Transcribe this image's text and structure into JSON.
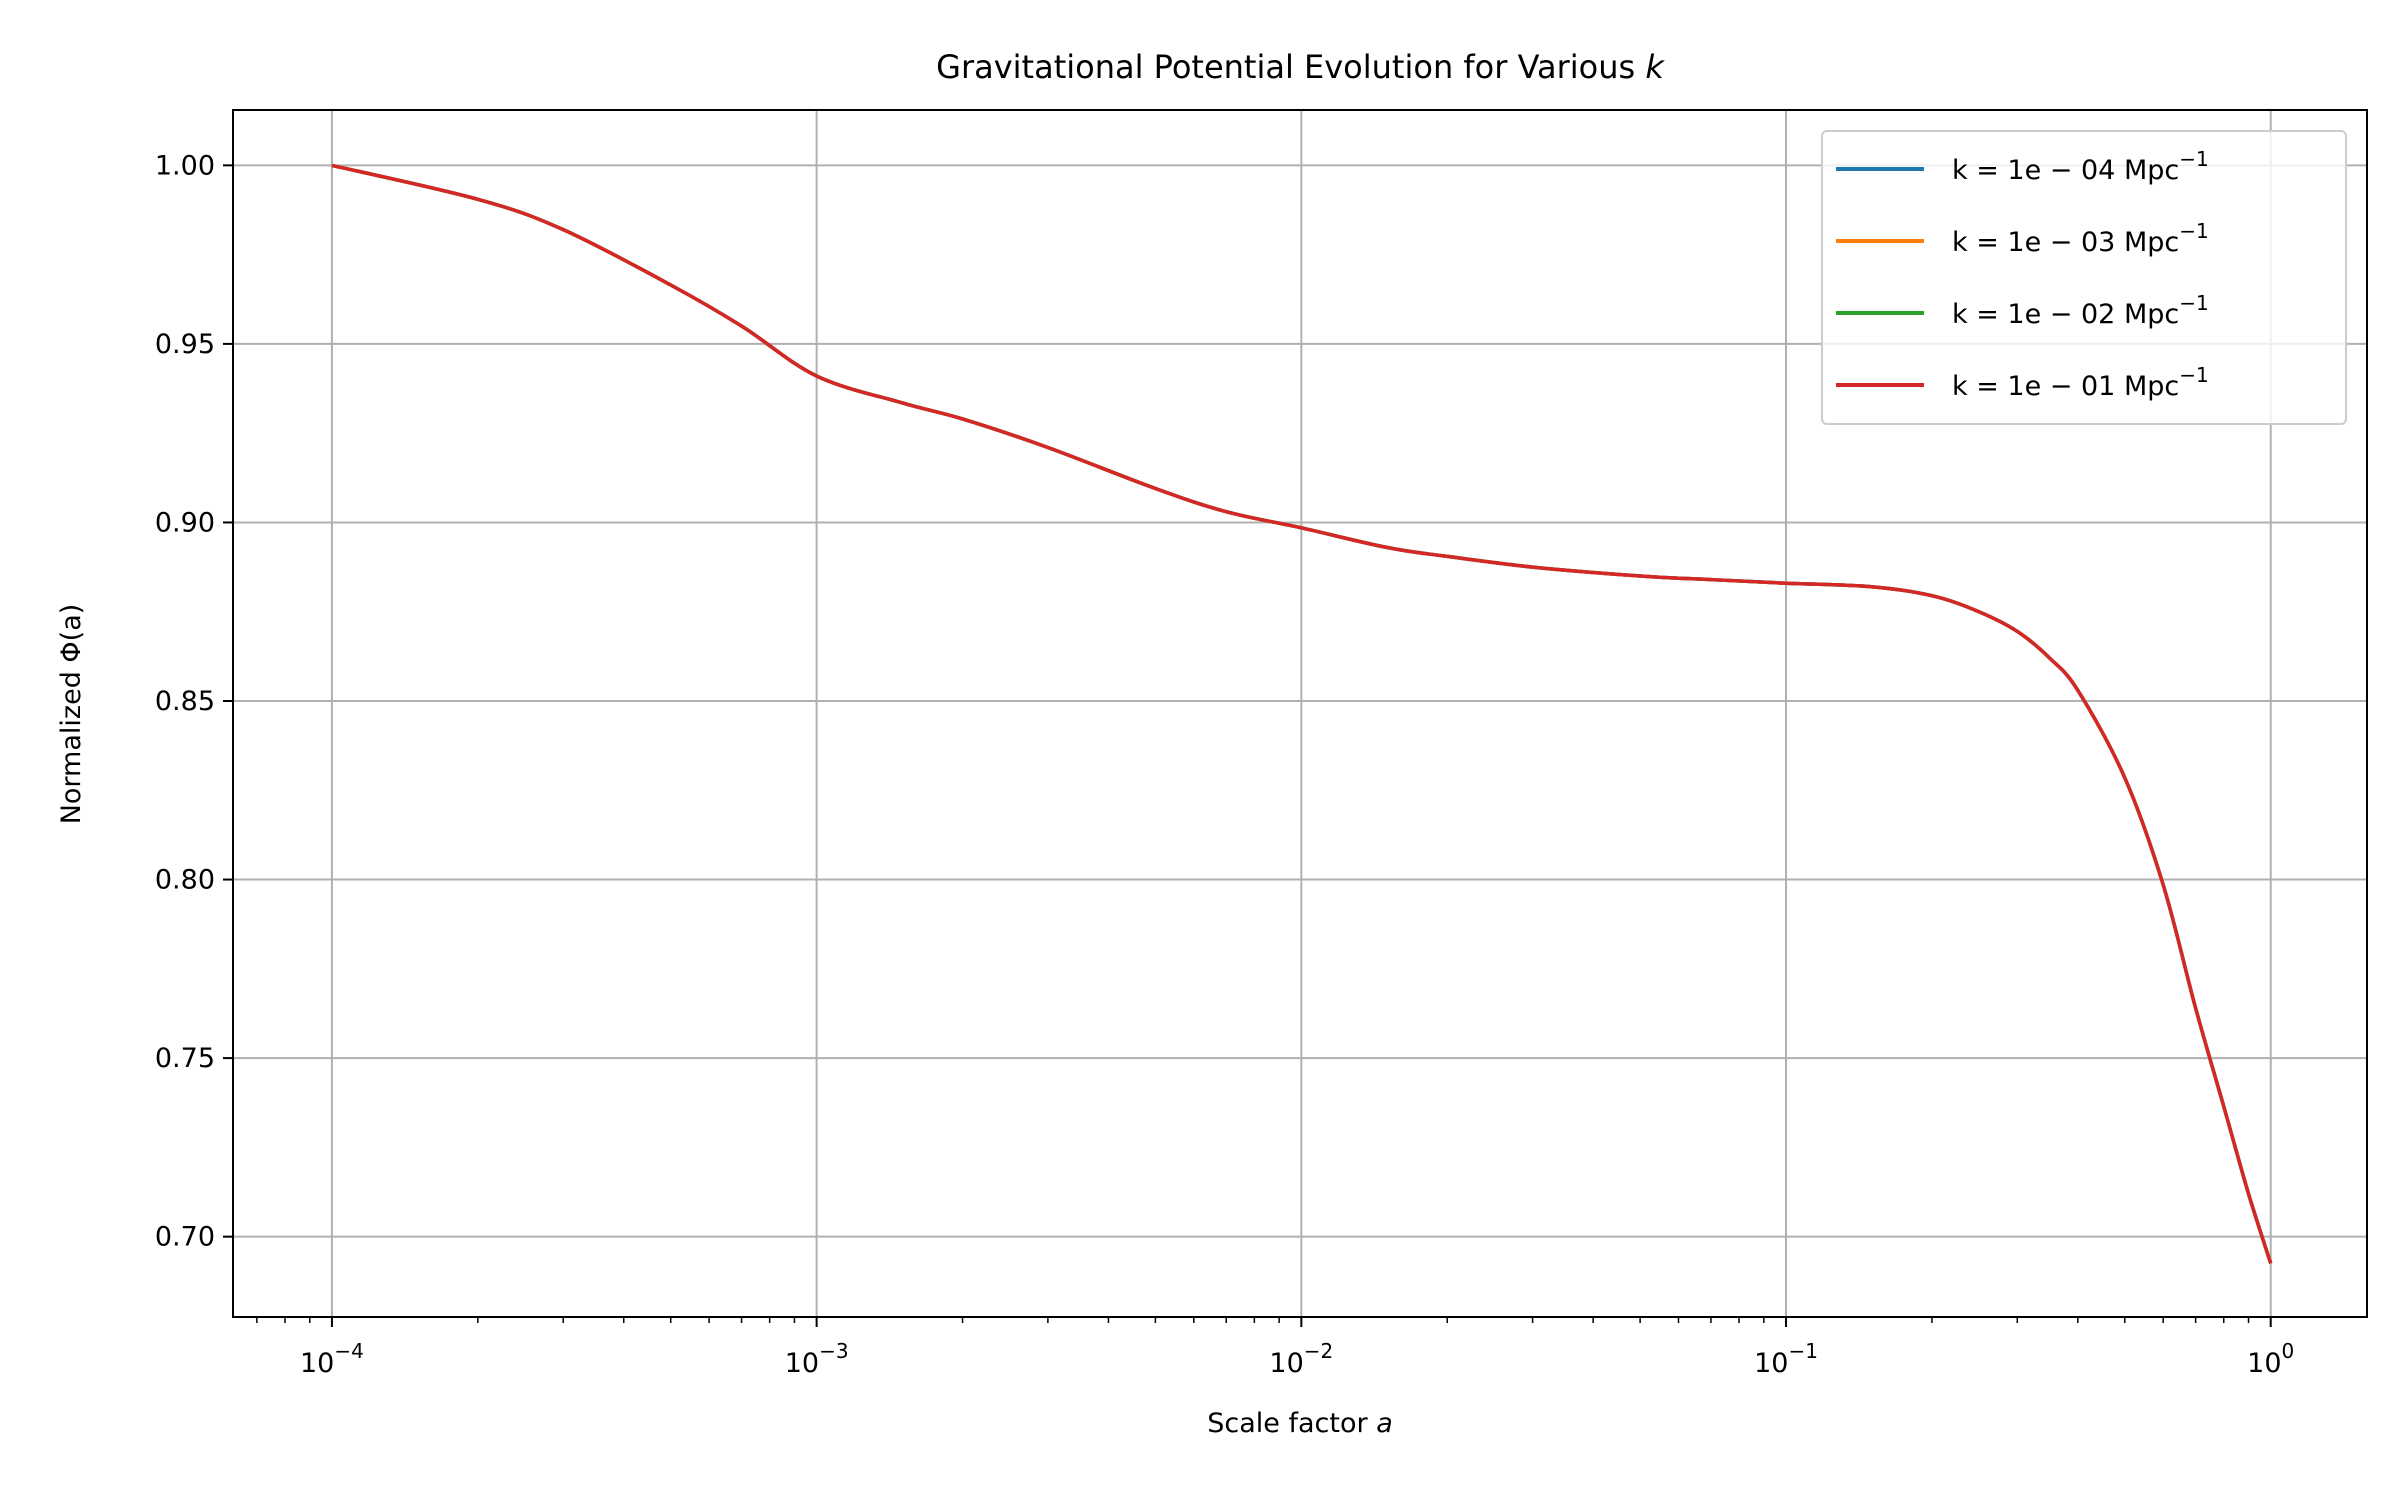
{
  "chart_data": {
    "type": "line",
    "title": "Gravitational Potential Evolution for Various ",
    "title_italic": "k",
    "xlabel": "Scale factor ",
    "xlabel_italic": "a",
    "ylabel": "Normalized Φ(a)",
    "xscale": "log",
    "xlim": [
      6.25e-05,
      1.58
    ],
    "ylim": [
      0.6775,
      1.0155
    ],
    "xticks": [
      {
        "value": 0.0001,
        "base": "10",
        "exp": "−4"
      },
      {
        "value": 0.001,
        "base": "10",
        "exp": "−3"
      },
      {
        "value": 0.01,
        "base": "10",
        "exp": "−2"
      },
      {
        "value": 0.1,
        "base": "10",
        "exp": "−1"
      },
      {
        "value": 1,
        "base": "10",
        "exp": "0"
      }
    ],
    "yticks": [
      {
        "value": 0.7,
        "label": "0.70"
      },
      {
        "value": 0.75,
        "label": "0.75"
      },
      {
        "value": 0.8,
        "label": "0.80"
      },
      {
        "value": 0.85,
        "label": "0.85"
      },
      {
        "value": 0.9,
        "label": "0.90"
      },
      {
        "value": 0.95,
        "label": "0.95"
      },
      {
        "value": 1.0,
        "label": "1.00"
      }
    ],
    "grid": true,
    "legend_position": "top-right",
    "x": [
      0.0001,
      0.0002,
      0.0003,
      0.0005,
      0.0007,
      0.001,
      0.0015,
      0.002,
      0.003,
      0.005,
      0.007,
      0.01,
      0.015,
      0.02,
      0.03,
      0.05,
      0.07,
      0.1,
      0.15,
      0.2,
      0.25,
      0.3,
      0.35,
      0.4,
      0.5,
      0.6,
      0.7,
      0.8,
      0.9,
      1.0
    ],
    "series": [
      {
        "name": "k = 1e − 04 Mpc",
        "name_sup": "−1",
        "color": "#1f77b4",
        "values": [
          1.0,
          0.9905,
          0.982,
          0.9665,
          0.955,
          0.941,
          0.9335,
          0.929,
          0.921,
          0.9095,
          0.903,
          0.8985,
          0.893,
          0.8905,
          0.8875,
          0.885,
          0.884,
          0.883,
          0.882,
          0.8795,
          0.875,
          0.8695,
          0.862,
          0.853,
          0.8285,
          0.7985,
          0.764,
          0.7365,
          0.712,
          0.6925
        ]
      },
      {
        "name": "k = 1e − 03 Mpc",
        "name_sup": "−1",
        "color": "#ff7f0e",
        "values": [
          1.0,
          0.9905,
          0.982,
          0.9665,
          0.955,
          0.941,
          0.9335,
          0.929,
          0.921,
          0.9095,
          0.903,
          0.8985,
          0.893,
          0.8905,
          0.8875,
          0.885,
          0.884,
          0.883,
          0.882,
          0.8795,
          0.875,
          0.8695,
          0.862,
          0.853,
          0.8285,
          0.7985,
          0.764,
          0.7365,
          0.712,
          0.6925
        ]
      },
      {
        "name": "k = 1e − 02 Mpc",
        "name_sup": "−1",
        "color": "#2ca02c",
        "values": [
          1.0,
          0.9905,
          0.982,
          0.9665,
          0.955,
          0.941,
          0.9335,
          0.929,
          0.921,
          0.9095,
          0.903,
          0.8985,
          0.893,
          0.8905,
          0.8875,
          0.885,
          0.884,
          0.883,
          0.882,
          0.8795,
          0.875,
          0.8695,
          0.862,
          0.853,
          0.8285,
          0.7985,
          0.764,
          0.7365,
          0.712,
          0.6925
        ]
      },
      {
        "name": "k = 1e − 01 Mpc",
        "name_sup": "−1",
        "color": "#d62728",
        "values": [
          1.0,
          0.9905,
          0.982,
          0.9665,
          0.955,
          0.941,
          0.9335,
          0.929,
          0.921,
          0.9095,
          0.903,
          0.8985,
          0.893,
          0.8905,
          0.8875,
          0.885,
          0.884,
          0.883,
          0.882,
          0.8795,
          0.875,
          0.8695,
          0.862,
          0.853,
          0.8285,
          0.7985,
          0.764,
          0.7365,
          0.712,
          0.6925
        ]
      }
    ],
    "colors": {
      "grid": "#b0b0b0",
      "axes": "#000000",
      "background": "#ffffff"
    }
  }
}
